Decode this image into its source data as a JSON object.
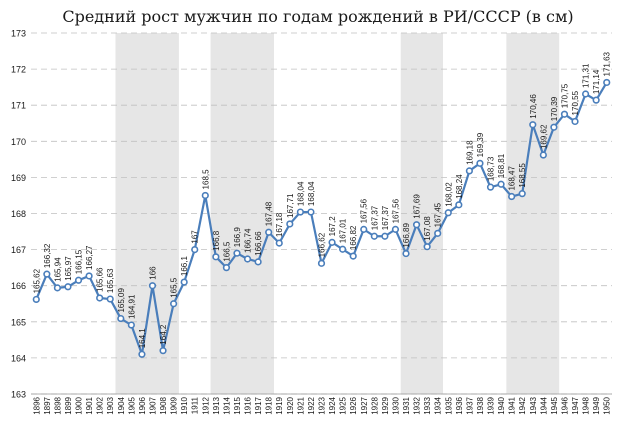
{
  "chart_data": {
    "type": "line",
    "title": "Средний рост мужчин по годам рождений в РИ/СССР (в см)",
    "xlabel": "",
    "ylabel": "",
    "ylim": [
      163,
      173
    ],
    "yticks": [
      163,
      164,
      165,
      166,
      167,
      168,
      169,
      170,
      171,
      172,
      173
    ],
    "grid": true,
    "legend": "none",
    "x": [
      1896,
      1897,
      1898,
      1899,
      1900,
      1901,
      1902,
      1903,
      1904,
      1905,
      1906,
      1907,
      1908,
      1909,
      1910,
      1911,
      1912,
      1913,
      1914,
      1915,
      1916,
      1917,
      1918,
      1919,
      1920,
      1921,
      1922,
      1923,
      1924,
      1925,
      1926,
      1927,
      1928,
      1929,
      1930,
      1931,
      1932,
      1933,
      1934,
      1935,
      1936,
      1937,
      1938,
      1939,
      1940,
      1941,
      1942,
      1943,
      1944,
      1945,
      1946,
      1947,
      1948,
      1949,
      1950
    ],
    "x_labels": [
      "1896",
      "1897",
      "1898",
      "1899",
      "1900",
      "1901",
      "1902",
      "1903",
      "1904",
      "1905",
      "1906",
      "1907",
      "1908",
      "1909",
      "1910",
      "1911",
      "1912",
      "1913",
      "1914",
      "1915",
      "1916",
      "1917",
      "1918",
      "1919",
      "1920",
      "1921",
      "1922",
      "1923",
      "1924",
      "1925",
      "1926",
      "1927",
      "1928",
      "1929",
      "1930",
      "1931",
      "1932",
      "1933",
      "1934",
      "1935",
      "1936",
      "1937",
      "1938",
      "1939",
      "1940",
      "1941",
      "1942",
      "1943",
      "1944",
      "1945",
      "1946",
      "1947",
      "1948",
      "1949",
      "1950"
    ],
    "series": [
      {
        "values": [
          165.62,
          166.32,
          165.94,
          165.97,
          166.15,
          166.27,
          165.66,
          165.63,
          165.09,
          164.91,
          164.1,
          166,
          164.2,
          165.5,
          166.1,
          167,
          168.5,
          166.8,
          166.5,
          166.9,
          166.74,
          166.66,
          167.48,
          167.18,
          167.71,
          168.04,
          168.04,
          166.62,
          167.2,
          167.01,
          166.82,
          167.56,
          167.37,
          167.37,
          167.56,
          166.89,
          167.69,
          167.08,
          167.45,
          168.02,
          168.24,
          169.18,
          169.39,
          168.73,
          168.81,
          168.47,
          168.55,
          170.46,
          169.62,
          170.39,
          170.75,
          170.55,
          171.31,
          171.14,
          171.63
        ],
        "labels": [
          "165,62",
          "166,32",
          "165,94",
          "165,97",
          "166,15",
          "166,27",
          "165,66",
          "165,63",
          "165,09",
          "164,91",
          "164,1",
          "166",
          "164,2",
          "165,5",
          "166,1",
          "167",
          "168,5",
          "166,8",
          "166,5",
          "166,9",
          "166,74",
          "166,66",
          "167,48",
          "167,18",
          "167,71",
          "168,04",
          "168,04",
          "166,62",
          "167,2",
          "167,01",
          "166,82",
          "167,56",
          "167,37",
          "167,37",
          "167,56",
          "166,89",
          "167,69",
          "167,08",
          "167,45",
          "168,02",
          "168,24",
          "169,18",
          "169,39",
          "168,73",
          "168,81",
          "168,47",
          "168,55",
          "170,46",
          "169,62",
          "170,39",
          "170,75",
          "170,55",
          "171,31",
          "171,14",
          "171,63"
        ]
      }
    ],
    "shaded_ranges": [
      [
        1904,
        1909
      ],
      [
        1913,
        1918
      ],
      [
        1931,
        1934
      ],
      [
        1941,
        1945
      ]
    ],
    "colors": {
      "line": "#4a7ebb",
      "marker_fill": "#ffffff",
      "marker_stroke": "#4a7ebb",
      "shade": "#e6e6e6",
      "grid": "#c0c0c0",
      "text": "#1a1a1a"
    }
  }
}
